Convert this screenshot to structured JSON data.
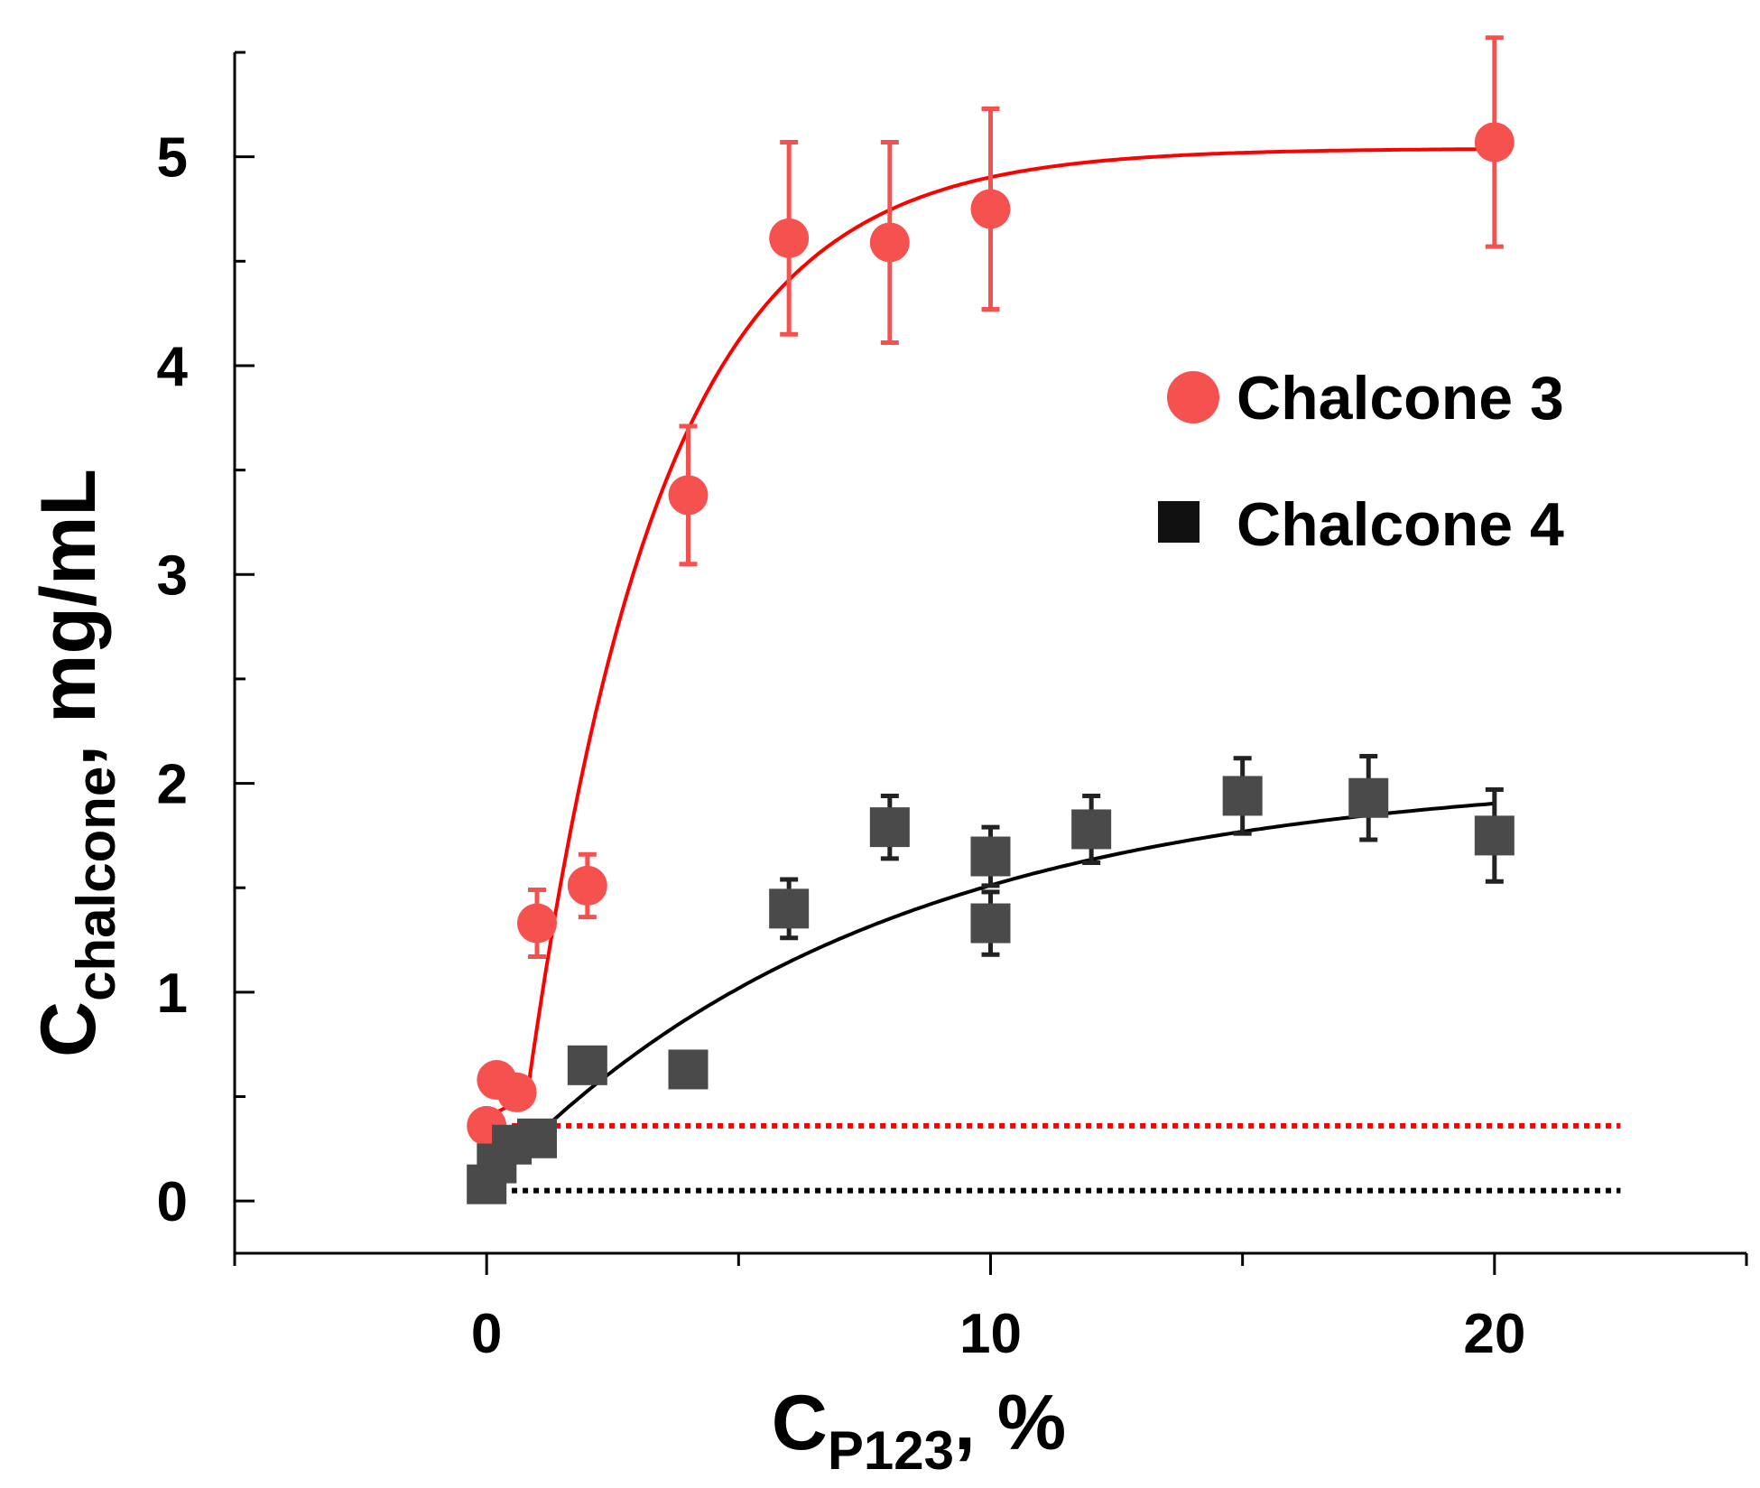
{
  "chart_data": {
    "type": "scatter",
    "title": "",
    "xlabel": {
      "main": "C",
      "sub": "P123",
      "suffix": ", %"
    },
    "ylabel": {
      "main": "C",
      "sub": "chalcone",
      "suffix": ", mg/mL"
    },
    "xlim": [
      -5,
      25
    ],
    "ylim": [
      -0.25,
      5.5
    ],
    "xticks": [
      0,
      10,
      20
    ],
    "xtick_labels": [
      "0",
      "10",
      "20"
    ],
    "yticks": [
      0,
      1,
      2,
      3,
      4,
      5
    ],
    "ytick_labels": [
      "0",
      "1",
      "2",
      "3",
      "4",
      "5"
    ],
    "grid": false,
    "legend_position": "top-right",
    "series": [
      {
        "name": "Chalcone 3",
        "marker": "circle",
        "color": "#f5524f",
        "fit_color": "#ff0000",
        "x": [
          0,
          0.2,
          0.6,
          1,
          2,
          4,
          6,
          8,
          10,
          20
        ],
        "y": [
          0.36,
          0.58,
          0.52,
          1.33,
          1.51,
          3.38,
          4.61,
          4.59,
          4.75,
          5.07
        ],
        "err": [
          0.04,
          0.07,
          0.05,
          0.16,
          0.15,
          0.33,
          0.46,
          0.48,
          0.48,
          0.5
        ],
        "fit": {
          "baseline": 0.4,
          "plateau": 5.04,
          "x0": 0.8,
          "k": 0.38
        },
        "reference_level": 0.36
      },
      {
        "name": "Chalcone 4",
        "marker": "square",
        "color": "#4a4a4a",
        "fit_color": "#000000",
        "x": [
          0,
          0.2,
          0.5,
          1,
          2,
          4,
          6,
          8,
          10,
          10,
          12,
          15,
          17.5,
          20
        ],
        "y": [
          0.08,
          0.18,
          0.27,
          0.3,
          0.65,
          0.63,
          1.4,
          1.79,
          1.65,
          1.33,
          1.78,
          1.94,
          1.93,
          1.75
        ],
        "err": [
          0,
          0,
          0,
          0,
          0,
          0,
          0.14,
          0.15,
          0.14,
          0.15,
          0.16,
          0.18,
          0.2,
          0.22
        ],
        "fit": {
          "baseline": 0.1,
          "plateau": 2.05,
          "x0": 0.3,
          "k": 0.13
        },
        "reference_level": 0.05
      }
    ]
  }
}
